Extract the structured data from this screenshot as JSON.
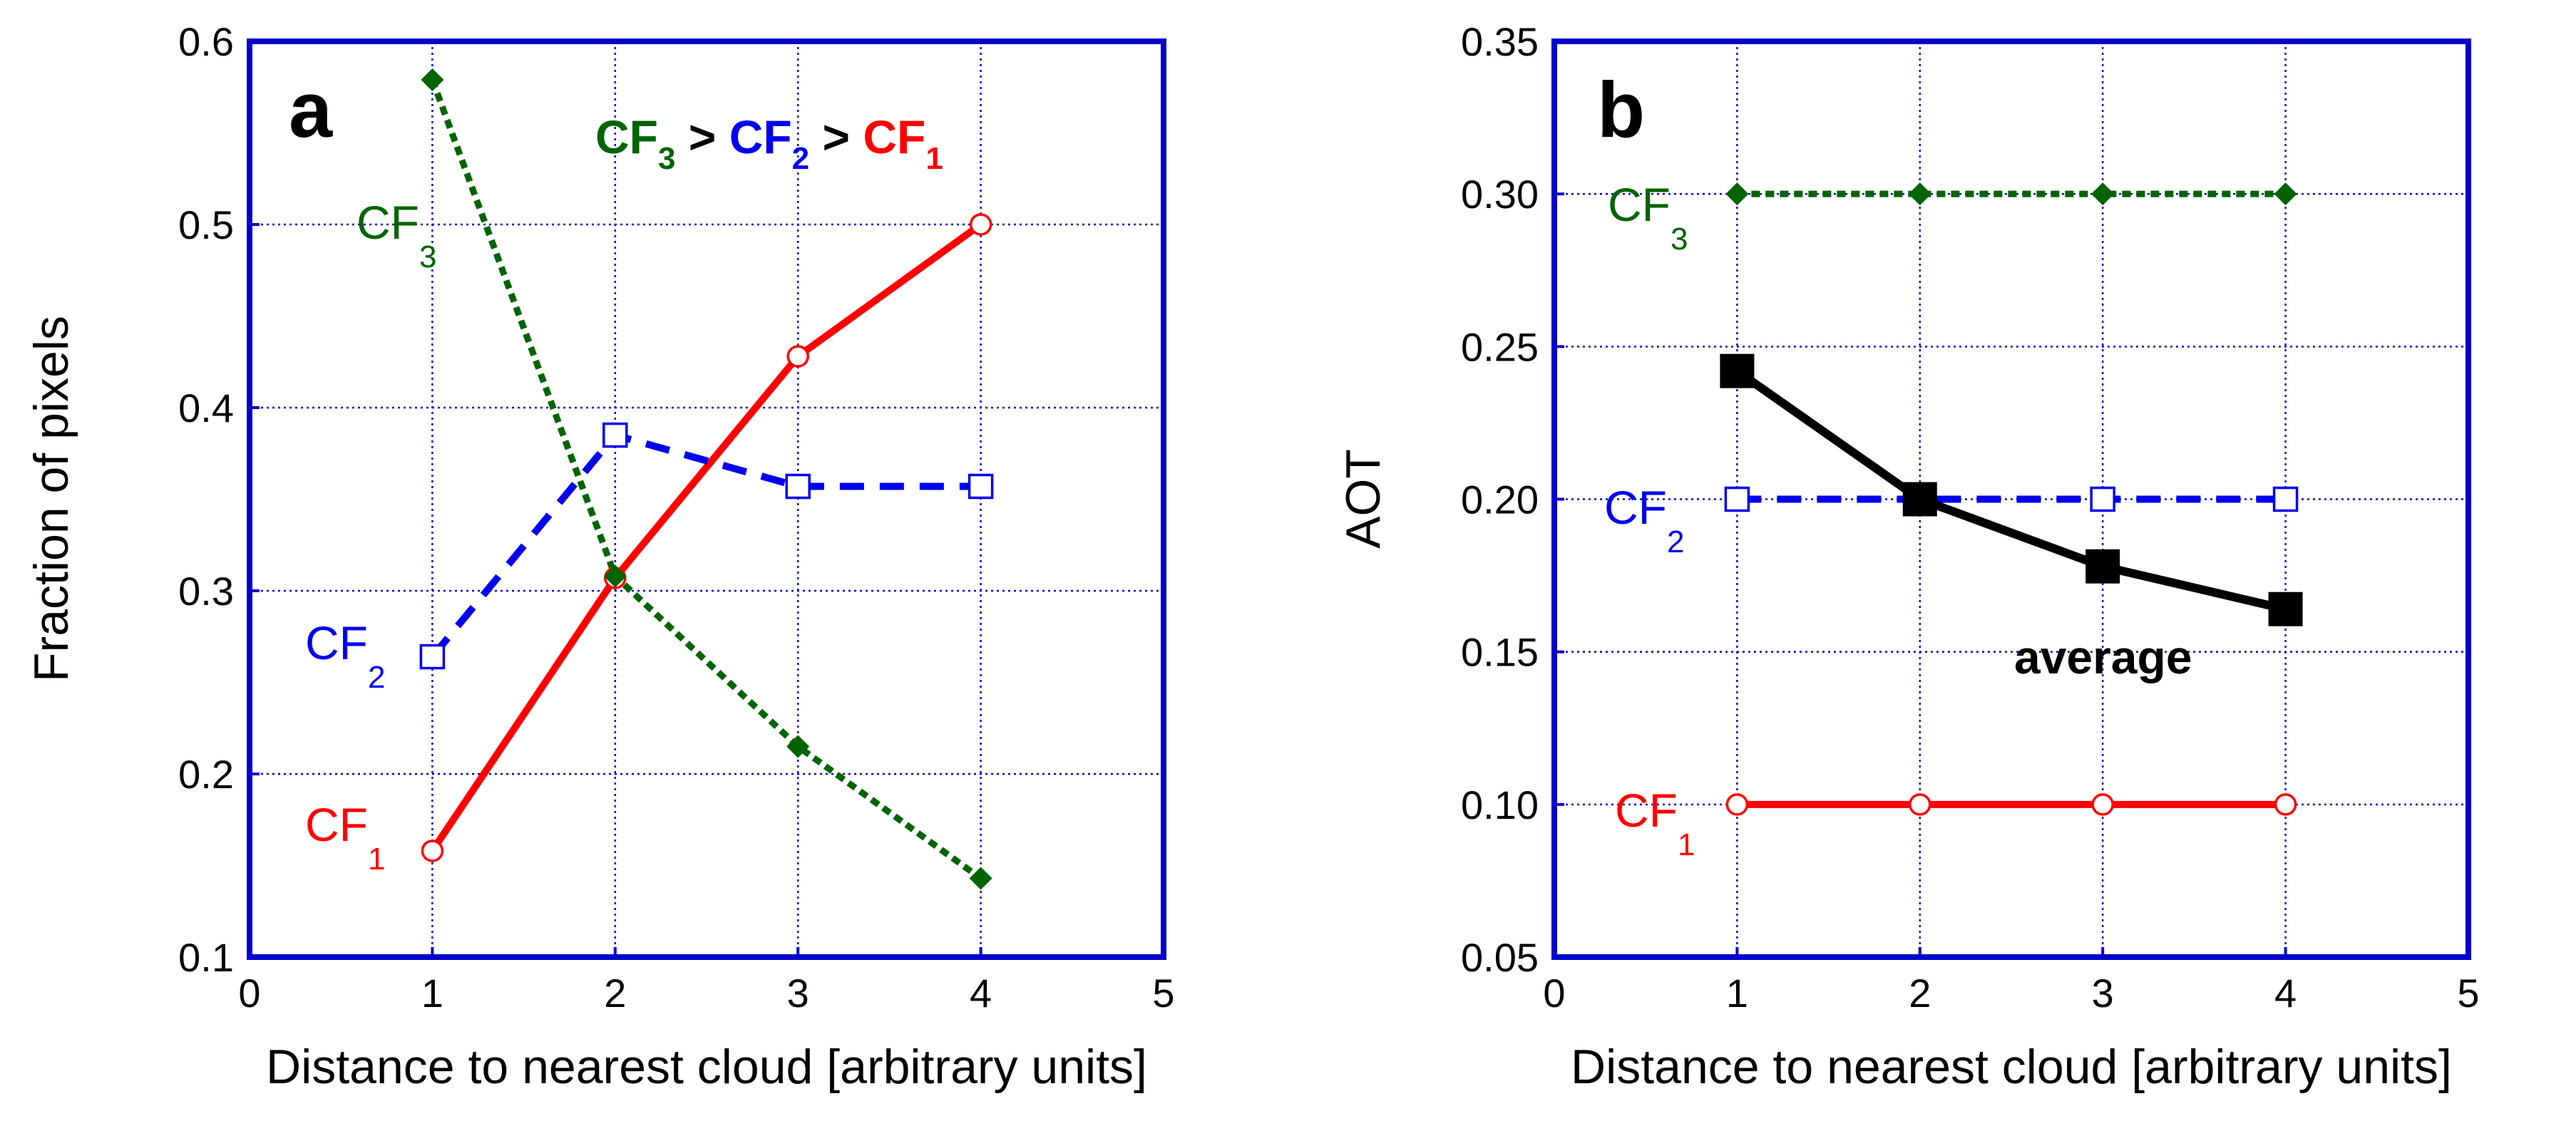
{
  "chart_data": [
    {
      "type": "line",
      "panel_label": "a",
      "xlabel": "Distance to nearest cloud [arbitrary units]",
      "ylabel": "Fraction of pixels",
      "xlim": [
        0,
        5
      ],
      "ylim": [
        0.1,
        0.6
      ],
      "xticks": [
        "0",
        "1",
        "2",
        "3",
        "4",
        "5"
      ],
      "yticks": [
        "0.1",
        "0.2",
        "0.3",
        "0.4",
        "0.5",
        "0.6"
      ],
      "grid": true,
      "x": [
        1,
        2,
        3,
        4
      ],
      "series": [
        {
          "label": "CF",
          "subscript": "1",
          "color": "#ff0000",
          "line": "solid",
          "marker": "open-circle",
          "values": [
            0.158,
            0.307,
            0.428,
            0.5
          ]
        },
        {
          "label": "CF",
          "subscript": "2",
          "color": "#0000ee",
          "line": "dashed",
          "marker": "open-square",
          "values": [
            0.264,
            0.385,
            0.357,
            0.357
          ]
        },
        {
          "label": "CF",
          "subscript": "3",
          "color": "#006400",
          "line": "dotted",
          "marker": "filled-diamond",
          "values": [
            0.579,
            0.308,
            0.215,
            0.143
          ]
        }
      ],
      "annotation": {
        "parts": [
          {
            "text": "CF",
            "sub": "3",
            "color": "#006400"
          },
          {
            "text": " > ",
            "sub": "",
            "color": "#000000"
          },
          {
            "text": "CF",
            "sub": "2",
            "color": "#0000ee"
          },
          {
            "text": " > ",
            "sub": "",
            "color": "#000000"
          },
          {
            "text": "CF",
            "sub": "1",
            "color": "#ff0000"
          }
        ]
      }
    },
    {
      "type": "line",
      "panel_label": "b",
      "xlabel": "Distance to nearest cloud [arbitrary units]",
      "ylabel": "AOT",
      "xlim": [
        0,
        5
      ],
      "ylim": [
        0.05,
        0.35
      ],
      "xticks": [
        "0",
        "1",
        "2",
        "3",
        "4",
        "5"
      ],
      "yticks": [
        "0.05",
        "0.10",
        "0.15",
        "0.20",
        "0.25",
        "0.30",
        "0.35"
      ],
      "grid": true,
      "x": [
        1,
        2,
        3,
        4
      ],
      "series": [
        {
          "label": "CF",
          "subscript": "1",
          "color": "#ff0000",
          "line": "solid",
          "marker": "open-circle",
          "values": [
            0.1,
            0.1,
            0.1,
            0.1
          ]
        },
        {
          "label": "CF",
          "subscript": "2",
          "color": "#0000ee",
          "line": "dashed",
          "marker": "open-square",
          "values": [
            0.2,
            0.2,
            0.2,
            0.2
          ]
        },
        {
          "label": "CF",
          "subscript": "3",
          "color": "#006400",
          "line": "dotted",
          "marker": "filled-diamond",
          "values": [
            0.3,
            0.3,
            0.3,
            0.3
          ]
        },
        {
          "label": "average",
          "subscript": "",
          "color": "#000000",
          "line": "solid-thick",
          "marker": "filled-square",
          "values": [
            0.242,
            0.2,
            0.178,
            0.164
          ]
        }
      ]
    }
  ]
}
